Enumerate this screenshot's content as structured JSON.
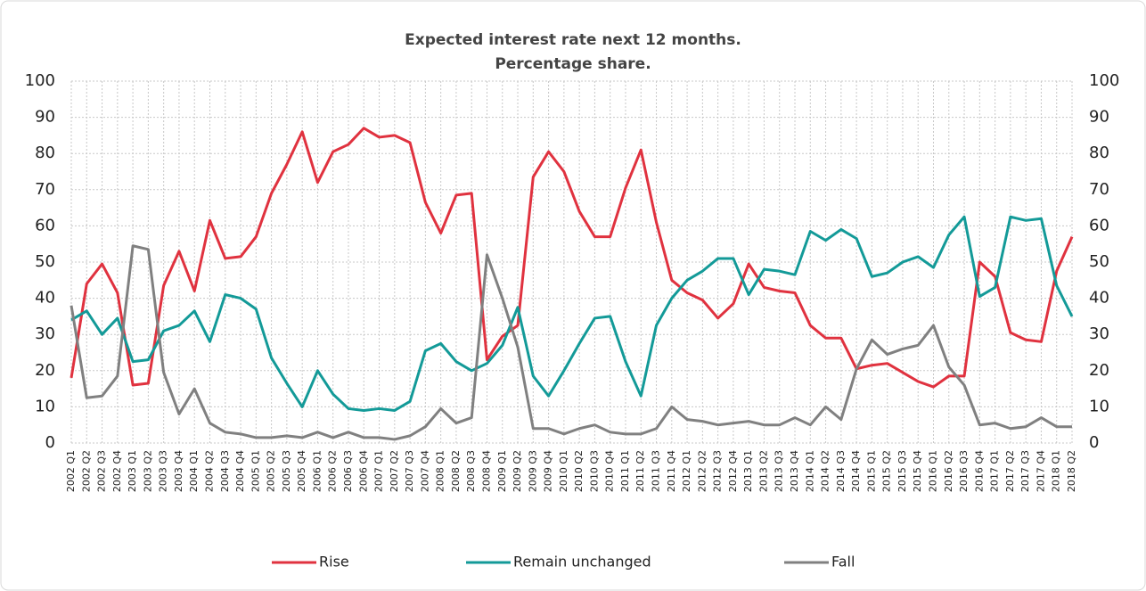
{
  "chart_data": {
    "type": "line",
    "title": "Expected interest rate next 12 months.",
    "subtitle": "Percentage share.",
    "categories": [
      "2002 Q1",
      "2002 Q2",
      "2002 Q3",
      "2002 Q4",
      "2003 Q1",
      "2003 Q2",
      "2003 Q3",
      "2003 Q4",
      "2004 Q1",
      "2004 Q2",
      "2004 Q3",
      "2004 Q4",
      "2005 Q1",
      "2005 Q2",
      "2005 Q3",
      "2005 Q4",
      "2006 Q1",
      "2006 Q2",
      "2006 Q3",
      "2006 Q4",
      "2007 Q1",
      "2007 Q2",
      "2007 Q3",
      "2007 Q4",
      "2008 Q1",
      "2008 Q2",
      "2008 Q3",
      "2008 Q4",
      "2009 Q1",
      "2009 Q2",
      "2009 Q3",
      "2009 Q4",
      "2010 Q1",
      "2010 Q2",
      "2010 Q3",
      "2010 Q4",
      "2011 Q1",
      "2011 Q2",
      "2011 Q3",
      "2011 Q4",
      "2012 Q1",
      "2012 Q2",
      "2012 Q3",
      "2012 Q4",
      "2013 Q1",
      "2013 Q2",
      "2013 Q3",
      "2013 Q4",
      "2014 Q1",
      "2014 Q2",
      "2014 Q3",
      "2014 Q4",
      "2015 Q1",
      "2015 Q2",
      "2015 Q3",
      "2015 Q4",
      "2016 Q1",
      "2016 Q2",
      "2016 Q3",
      "2016 Q4",
      "2017 Q1",
      "2017 Q2",
      "2017 Q3",
      "2017 Q4",
      "2018 Q1",
      "2018 Q2"
    ],
    "series": [
      {
        "name": "Rise",
        "color": "#e0323f",
        "values": [
          18,
          44,
          49.5,
          41.5,
          16,
          16.5,
          43.5,
          53,
          42,
          61.5,
          51,
          51.5,
          57,
          69,
          77,
          86,
          72,
          80.5,
          82.5,
          87,
          84.5,
          85,
          83,
          66.5,
          58,
          68.5,
          69,
          23,
          29.5,
          32.5,
          73.5,
          80.5,
          75,
          64,
          57,
          57,
          70.5,
          81,
          61,
          45,
          41.5,
          39.5,
          34.5,
          38.5,
          49.5,
          43,
          42,
          41.5,
          32.5,
          29,
          29,
          20.5,
          21.5,
          22,
          19.5,
          17,
          15.5,
          18.5,
          18.5,
          50,
          46,
          30.5,
          28.5,
          28,
          47.5,
          57
        ]
      },
      {
        "name": "Remain unchanged",
        "color": "#139a98",
        "values": [
          34,
          36.5,
          30,
          34.5,
          22.5,
          23,
          31,
          32.5,
          36.5,
          28,
          41,
          40,
          37,
          23.5,
          16.5,
          10,
          20,
          13.5,
          9.5,
          9,
          9.5,
          9,
          11.5,
          25.5,
          27.5,
          22.5,
          20,
          22,
          27,
          37.5,
          18.5,
          13,
          20,
          27.5,
          34.5,
          35,
          22.5,
          13,
          32.5,
          40,
          45,
          47.5,
          51,
          51,
          41,
          48,
          47.5,
          46.5,
          58.5,
          56,
          59,
          56.5,
          46,
          47,
          50,
          51.5,
          48.5,
          57.5,
          62.5,
          40.5,
          43,
          62.5,
          61.5,
          62,
          43.5,
          35
        ]
      },
      {
        "name": "Fall",
        "color": "#808080",
        "values": [
          38,
          12.5,
          13,
          18.5,
          54.5,
          53.5,
          19.5,
          8,
          15,
          5.5,
          3,
          2.5,
          1.5,
          1.5,
          2,
          1.5,
          3,
          1.5,
          3,
          1.5,
          1.5,
          1,
          2,
          4.5,
          9.5,
          5.5,
          7,
          52,
          40,
          26.5,
          4,
          4,
          2.5,
          4,
          5,
          3,
          2.5,
          2.5,
          4,
          10,
          6.5,
          6,
          5,
          5.5,
          6,
          5,
          5,
          7,
          5,
          10,
          6.5,
          20.5,
          28.5,
          24.5,
          26,
          27,
          32.5,
          21,
          16,
          5,
          5.5,
          4,
          4.5,
          7,
          4.5,
          4.5
        ]
      }
    ],
    "ylim": [
      0,
      100
    ],
    "yticks": [
      0,
      10,
      20,
      30,
      40,
      50,
      60,
      70,
      80,
      90,
      100
    ],
    "y2lim": [
      0,
      100
    ],
    "y2ticks": [
      0,
      10,
      20,
      30,
      40,
      50,
      60,
      70,
      80,
      90,
      100
    ],
    "grid": true,
    "legend": "bottom"
  }
}
